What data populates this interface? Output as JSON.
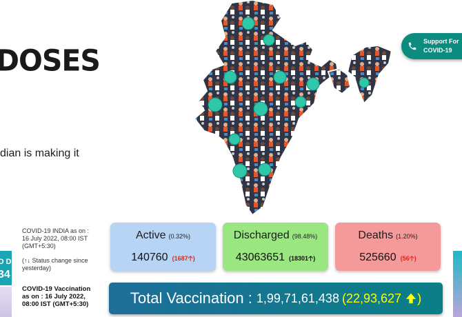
{
  "hero": {
    "heading": "DOSES",
    "subtext": "dian is making it"
  },
  "support_button": {
    "line1": "Support For",
    "line2": "COVID-19",
    "icon": "phone-icon"
  },
  "side_banner": {
    "line1": "O D",
    "line2": "34"
  },
  "stats_info": {
    "line": "COVID-19 INDIA as on : 16 July 2022, 08:00 IST (GMT+5:30)",
    "legend": "(↑↓ Status change since yesterday)"
  },
  "cards": {
    "active": {
      "label": "Active",
      "percent": "(0.32%)",
      "value": "140760",
      "change": "1687",
      "change_color": "#e0271a"
    },
    "discharged": {
      "label": "Discharged",
      "percent": "(98.48%)",
      "value": "43063651",
      "change": "18301",
      "change_color": "#111111"
    },
    "deaths": {
      "label": "Deaths",
      "percent": "(1.20%)",
      "value": "525660",
      "change": "56",
      "change_color": "#e0271a"
    }
  },
  "vaccination_info": {
    "line": "COVID-19 Vaccination as on : 16 July 2022, 08:00 IST (GMT+5:30)"
  },
  "vaccination": {
    "label": "Total Vaccination :",
    "total": "1,99,71,61,438",
    "delta_open": "(22,93,627",
    "delta_close": ")"
  },
  "colors": {
    "active_card": "#b7d4f5",
    "discharged_card": "#9ae681",
    "deaths_card": "#f59a9a",
    "vaccination_bar": "#0a7f86",
    "support_button": "#0c8b7f",
    "change_up": "#e0271a"
  }
}
